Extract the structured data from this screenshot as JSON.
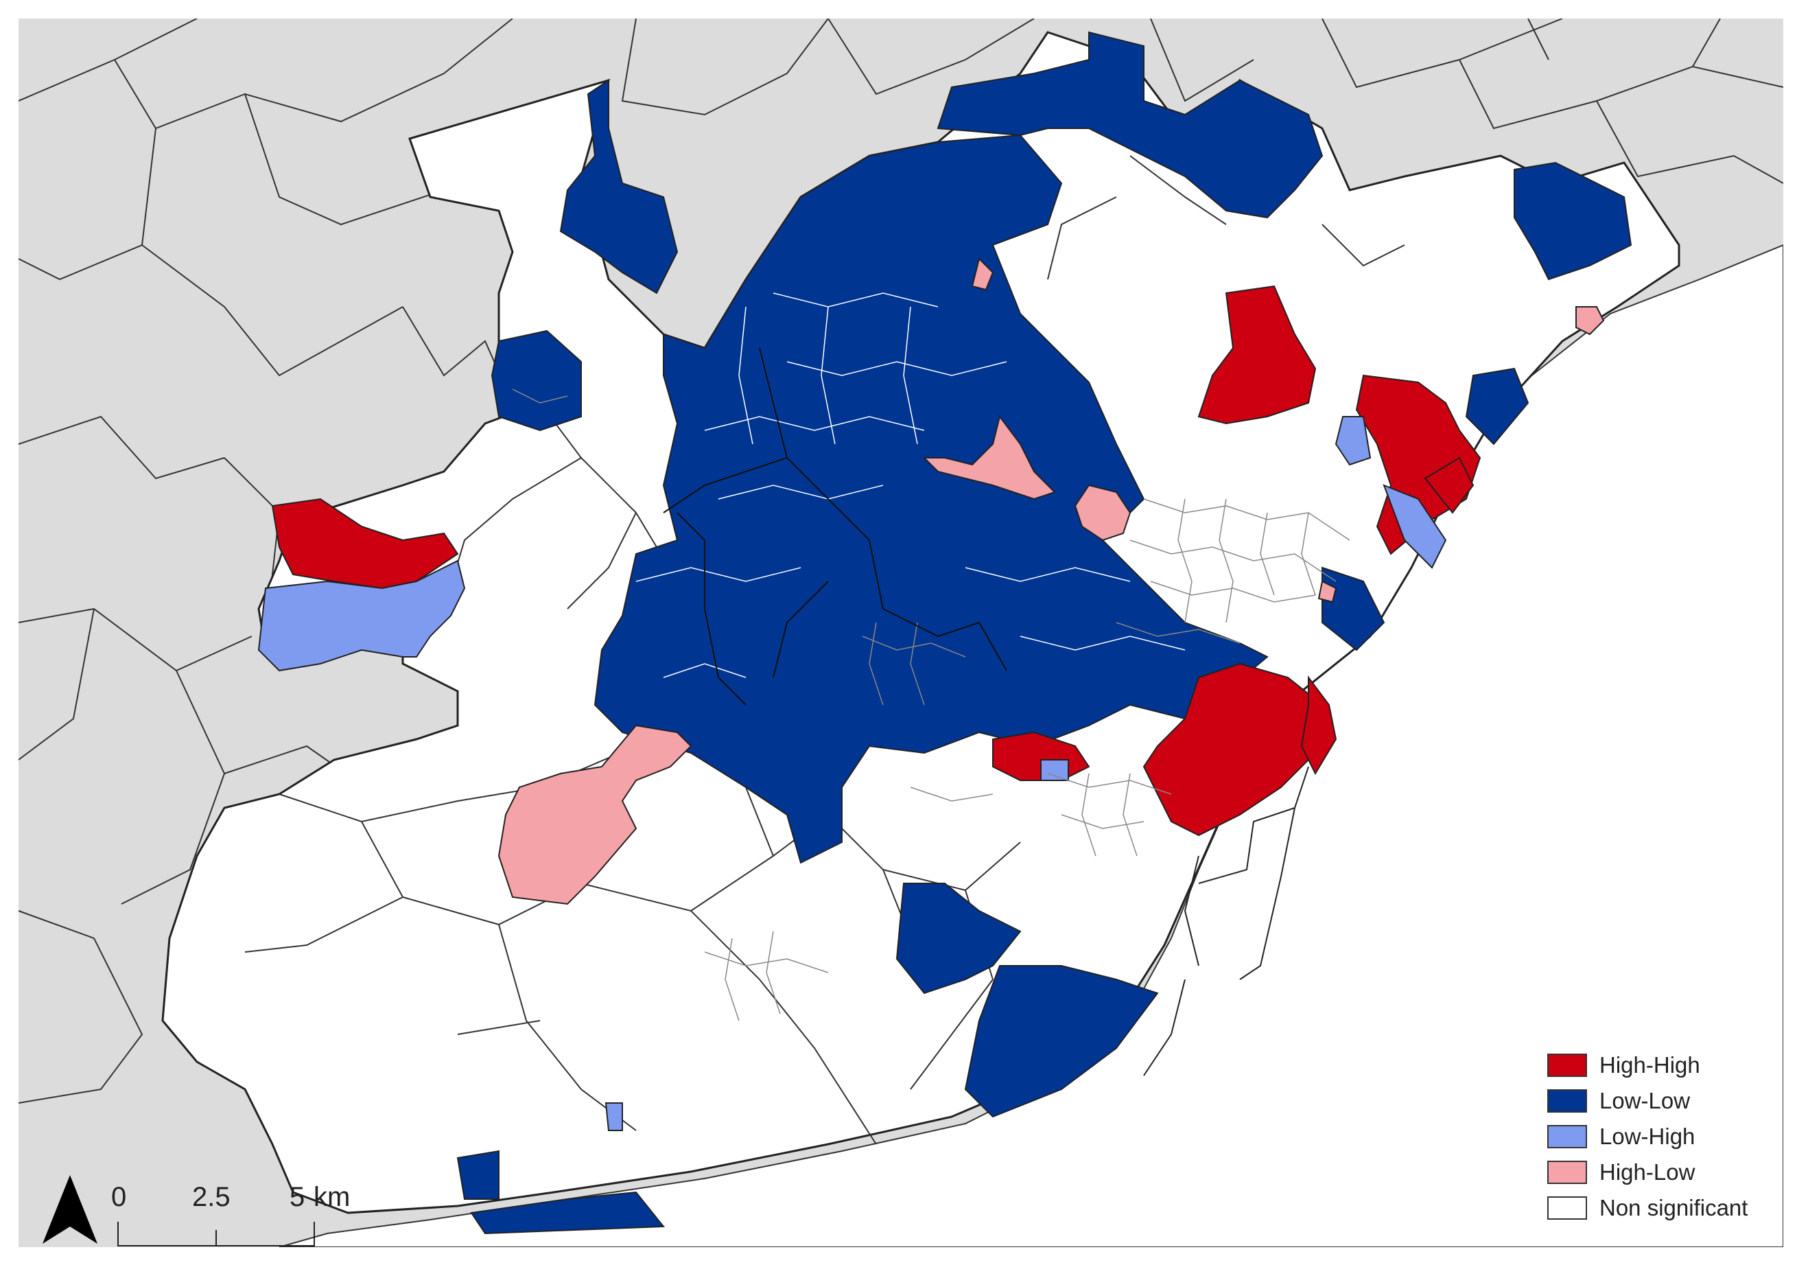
{
  "map": {
    "colors": {
      "background": "#dcdcdc",
      "sea": "#ffffff",
      "boundary": "#333333",
      "inner_boundary": "#ffffff",
      "tract_line": "#888888"
    }
  },
  "legend": {
    "items": [
      {
        "label": "High-High",
        "color": "#cc0010"
      },
      {
        "label": "Low-Low",
        "color": "#003591"
      },
      {
        "label": "Low-High",
        "color": "#7f9bf0"
      },
      {
        "label": "High-Low",
        "color": "#f4a3a8"
      },
      {
        "label": "Non significant",
        "color": "#ffffff"
      }
    ]
  },
  "scalebar": {
    "labels": [
      "0",
      "2.5",
      "5"
    ],
    "unit": "km"
  },
  "north_arrow": {
    "icon": "north-arrow-icon"
  }
}
